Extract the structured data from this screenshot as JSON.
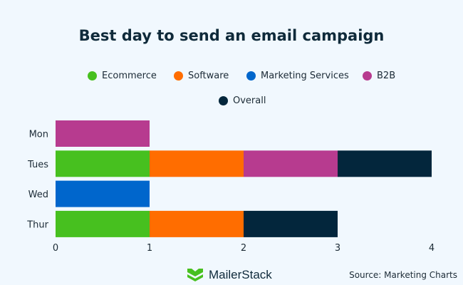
{
  "chart_data": {
    "type": "bar",
    "orientation": "horizontal",
    "stacked": true,
    "title": "Best day to send an email campaign",
    "categories": [
      "Mon",
      "Tues",
      "Wed",
      "Thur"
    ],
    "series": [
      {
        "name": "Ecommerce",
        "color": "#47c01f",
        "values": [
          0,
          1,
          0,
          1
        ]
      },
      {
        "name": "Software",
        "color": "#ff6d00",
        "values": [
          0,
          1,
          0,
          1
        ]
      },
      {
        "name": "Marketing Services",
        "color": "#0066cc",
        "values": [
          0,
          0,
          1,
          0
        ]
      },
      {
        "name": "B2B",
        "color": "#b73b8f",
        "values": [
          1,
          1,
          0,
          0
        ]
      },
      {
        "name": "Overall",
        "color": "#03263c",
        "values": [
          0,
          1,
          0,
          1
        ]
      }
    ],
    "xlim": [
      0,
      4
    ],
    "xticks": [
      "0",
      "1",
      "2",
      "3",
      "4"
    ],
    "grid": false,
    "legend_position": "top"
  },
  "footer": {
    "logo": "MailerStack",
    "source": "Source: Marketing Charts"
  }
}
